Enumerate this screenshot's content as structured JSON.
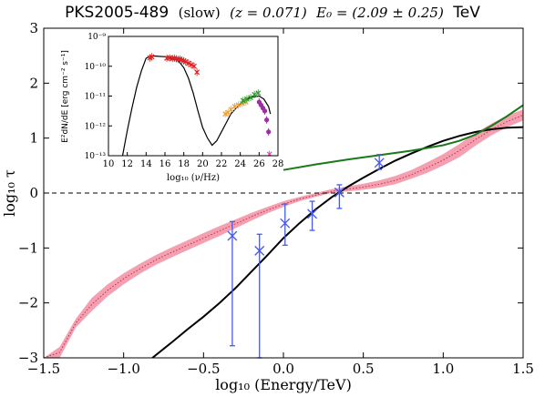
{
  "chart_data": {
    "type": "line",
    "title": {
      "source": "PKS2005-489",
      "state": "(slow)",
      "redshift": "(z = 0.071)",
      "energy": "E₀ = (2.09 ± 0.25)",
      "unit": "TeV"
    },
    "xlabel": "log₁₀ (Energy/TeV)",
    "ylabel": "log₁₀ τ",
    "xlim": [
      -1.5,
      1.5
    ],
    "ylim": [
      -3,
      3
    ],
    "xticks": [
      -1.5,
      -1.0,
      -0.5,
      0.0,
      0.5,
      1.0,
      1.5
    ],
    "xtick_labels": [
      "−1.5",
      "−1.0",
      "−0.5",
      "0.0",
      "0.5",
      "1.0",
      "1.5"
    ],
    "yticks": [
      -3,
      -2,
      -1,
      0,
      1,
      2,
      3
    ],
    "ytick_labels": [
      "−3",
      "−2",
      "−1",
      "0",
      "1",
      "2",
      "3"
    ],
    "reference_line": {
      "y": 0,
      "style": "dashed"
    },
    "band": {
      "color": "#f4a0b0",
      "x": [
        -1.5,
        -1.4,
        -1.3,
        -1.2,
        -1.1,
        -1.0,
        -0.9,
        -0.8,
        -0.7,
        -0.6,
        -0.5,
        -0.4,
        -0.3,
        -0.2,
        -0.1,
        0.0,
        0.1,
        0.2,
        0.3,
        0.4,
        0.5,
        0.6,
        0.7,
        0.8,
        0.9,
        1.0,
        1.1,
        1.2,
        1.3,
        1.4,
        1.5
      ],
      "lower": [
        -3.0,
        -3.0,
        -2.45,
        -2.15,
        -1.88,
        -1.66,
        -1.47,
        -1.31,
        -1.17,
        -1.04,
        -0.91,
        -0.78,
        -0.64,
        -0.5,
        -0.37,
        -0.25,
        -0.15,
        -0.07,
        0.0,
        0.03,
        0.06,
        0.1,
        0.16,
        0.26,
        0.37,
        0.5,
        0.65,
        0.86,
        1.05,
        1.2,
        1.32
      ],
      "mid": [
        -3.0,
        -2.9,
        -2.37,
        -2.03,
        -1.77,
        -1.56,
        -1.38,
        -1.22,
        -1.08,
        -0.95,
        -0.82,
        -0.69,
        -0.56,
        -0.43,
        -0.31,
        -0.2,
        -0.11,
        -0.04,
        0.03,
        0.07,
        0.11,
        0.16,
        0.23,
        0.33,
        0.46,
        0.6,
        0.77,
        0.97,
        1.15,
        1.3,
        1.42
      ],
      "upper": [
        -3.0,
        -2.8,
        -2.29,
        -1.91,
        -1.66,
        -1.46,
        -1.29,
        -1.13,
        -0.99,
        -0.86,
        -0.73,
        -0.6,
        -0.48,
        -0.36,
        -0.25,
        -0.15,
        -0.07,
        0.0,
        0.07,
        0.12,
        0.17,
        0.23,
        0.31,
        0.42,
        0.56,
        0.71,
        0.89,
        1.09,
        1.26,
        1.41,
        1.52
      ]
    },
    "series": [
      {
        "color": "#000000",
        "x": [
          -0.82,
          -0.7,
          -0.6,
          -0.5,
          -0.4,
          -0.3,
          -0.2,
          -0.1,
          0.0,
          0.1,
          0.2,
          0.3,
          0.4,
          0.5,
          0.6,
          0.7,
          0.8,
          0.9,
          1.0,
          1.1,
          1.2,
          1.3,
          1.4,
          1.5
        ],
        "y": [
          -3.0,
          -2.72,
          -2.48,
          -2.25,
          -2.0,
          -1.73,
          -1.43,
          -1.13,
          -0.82,
          -0.55,
          -0.3,
          -0.08,
          0.11,
          0.28,
          0.44,
          0.59,
          0.72,
          0.84,
          0.95,
          1.04,
          1.11,
          1.16,
          1.19,
          1.2
        ]
      },
      {
        "color": "#1a7a1a",
        "x": [
          0.0,
          0.2,
          0.4,
          0.6,
          0.8,
          1.0,
          1.1,
          1.2,
          1.3,
          1.4,
          1.5
        ],
        "y": [
          0.42,
          0.52,
          0.61,
          0.69,
          0.77,
          0.87,
          0.95,
          1.06,
          1.22,
          1.4,
          1.6
        ]
      }
    ],
    "points": {
      "color": "#4a5ae8",
      "values": [
        {
          "x": -0.32,
          "y": -0.78,
          "ylo": -2.78,
          "yhi": -0.52
        },
        {
          "x": -0.15,
          "y": -1.05,
          "ylo": -3.0,
          "yhi": -0.75
        },
        {
          "x": 0.01,
          "y": -0.55,
          "ylo": -0.95,
          "yhi": -0.2
        },
        {
          "x": 0.18,
          "y": -0.38,
          "ylo": -0.68,
          "yhi": -0.15
        },
        {
          "x": 0.35,
          "y": 0.01,
          "ylo": -0.28,
          "yhi": 0.15
        },
        {
          "x": 0.6,
          "y": 0.55,
          "ylo": 0.43,
          "yhi": 0.7
        }
      ]
    },
    "inset": {
      "type": "scatter",
      "xlabel": "log₁₀ (ν/Hz)",
      "ylabel": "E²dN/dE [erg cm⁻² s⁻¹]",
      "xlim": [
        10,
        28
      ],
      "ylim_log10": [
        -13,
        -9
      ],
      "xticks": [
        10,
        12,
        14,
        16,
        18,
        20,
        22,
        24,
        26,
        28
      ],
      "xtick_labels": [
        "10",
        "12",
        "14",
        "16",
        "18",
        "20",
        "22",
        "24",
        "26",
        "28"
      ],
      "yticks_log10": [
        -13,
        -12,
        -11,
        -10,
        -9
      ],
      "ytick_labels": [
        "10⁻¹³",
        "10⁻¹²",
        "10⁻¹¹",
        "10⁻¹⁰",
        "10⁻⁹"
      ],
      "model": {
        "color": "#000000",
        "x": [
          11.5,
          12.0,
          12.5,
          13.0,
          13.5,
          14.0,
          14.5,
          15.0,
          16.0,
          17.0,
          17.5,
          18.0,
          18.5,
          19.0,
          19.5,
          20.0,
          20.5,
          21.0,
          21.5,
          22.0,
          22.5,
          23.0,
          24.0,
          25.0,
          26.0,
          26.5,
          27.0,
          27.2
        ],
        "y": [
          -13.0,
          -12.15,
          -11.4,
          -10.7,
          -10.15,
          -9.73,
          -9.66,
          -9.66,
          -9.68,
          -9.75,
          -9.85,
          -10.05,
          -10.4,
          -10.9,
          -11.5,
          -12.05,
          -12.4,
          -12.65,
          -12.5,
          -12.2,
          -11.9,
          -11.6,
          -11.25,
          -11.05,
          -11.0,
          -11.1,
          -11.35,
          -11.6
        ]
      },
      "groups": [
        {
          "color": "#e02020",
          "marker": "x",
          "x": [
            14.4,
            14.6,
            16.2,
            16.5,
            16.8,
            17.0,
            17.2,
            17.4,
            17.6,
            17.8,
            18.0,
            18.2,
            18.5,
            18.8,
            19.1,
            19.4
          ],
          "y": [
            -9.72,
            -9.68,
            -9.73,
            -9.72,
            -9.74,
            -9.73,
            -9.75,
            -9.77,
            -9.76,
            -9.79,
            -9.82,
            -9.85,
            -9.9,
            -9.95,
            -10.0,
            -10.2
          ]
        },
        {
          "color": "#f0a030",
          "marker": "x",
          "x": [
            22.4,
            22.7,
            23.0,
            23.4,
            23.8,
            24.2,
            24.6
          ],
          "y": [
            -11.6,
            -11.55,
            -11.45,
            -11.35,
            -11.3,
            -11.25,
            -11.2
          ]
        },
        {
          "color": "#2a9a2a",
          "marker": "x",
          "x": [
            24.3,
            24.7,
            25.1,
            25.5,
            25.9
          ],
          "y": [
            -11.15,
            -11.1,
            -11.05,
            -10.95,
            -10.9
          ]
        },
        {
          "color": "#9a30a0",
          "marker": "o",
          "x": [
            26.0,
            26.2,
            26.4,
            26.6,
            26.8,
            27.0
          ],
          "y": [
            -11.2,
            -11.3,
            -11.4,
            -11.5,
            -11.8,
            -12.2
          ]
        },
        {
          "color": "#e040b0",
          "marker": "x",
          "x": [
            27.1
          ],
          "y": [
            -12.95
          ]
        }
      ]
    }
  }
}
